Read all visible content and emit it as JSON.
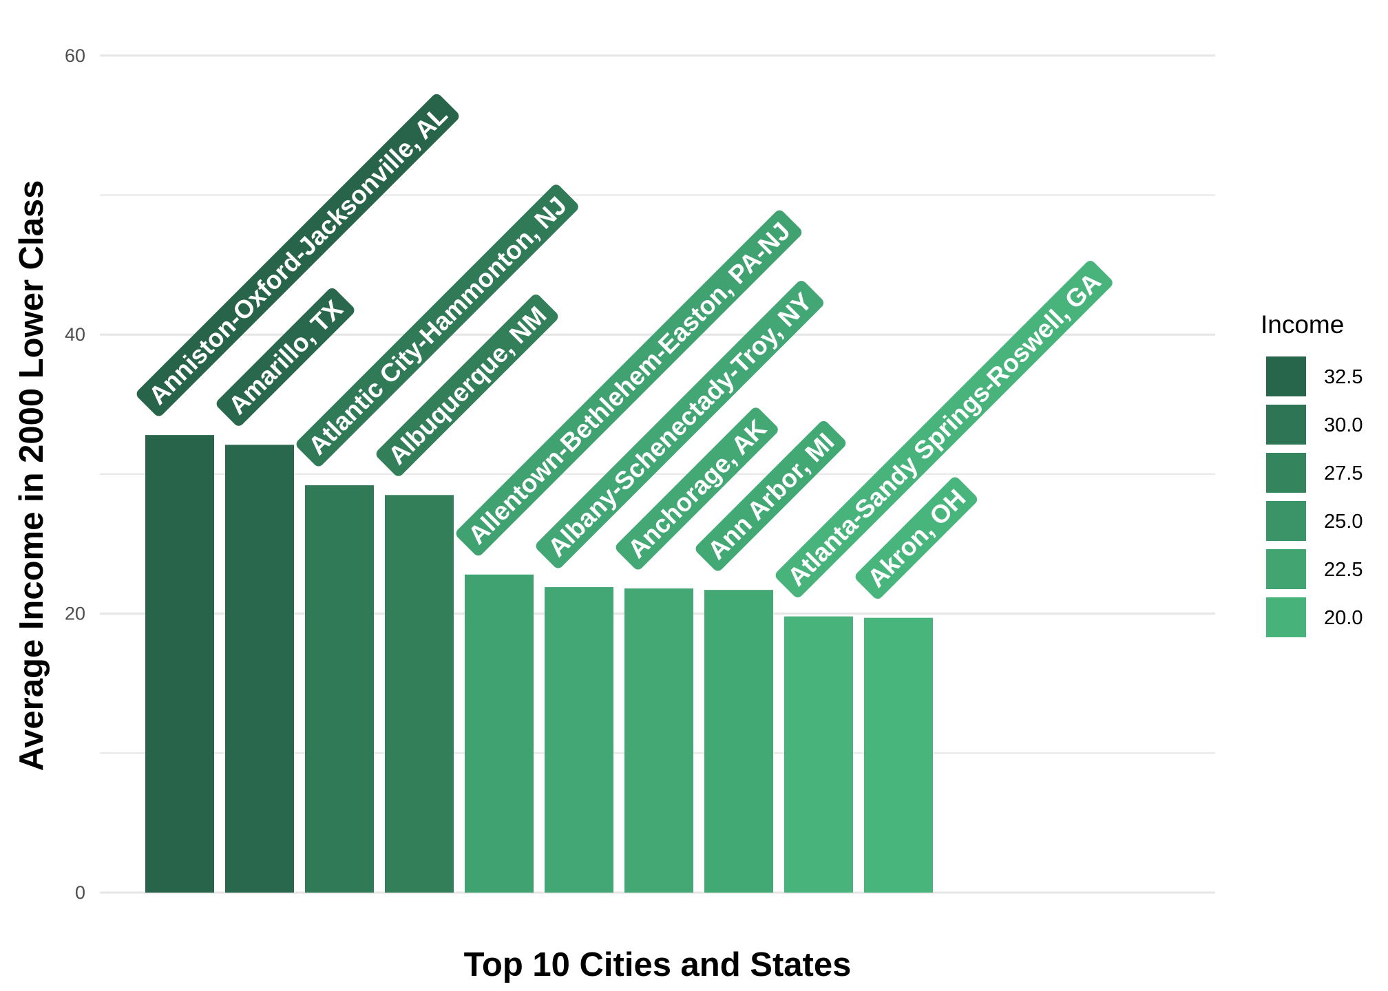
{
  "chart_data": {
    "type": "bar",
    "title": "",
    "xlabel": "Top 10 Cities and States",
    "ylabel": "Average Income in 2000 Lower Class",
    "ylim": [
      0,
      62
    ],
    "yticks": [
      0,
      20,
      40,
      60
    ],
    "grid": true,
    "categories": [
      "Anniston-Oxford-Jacksonville, AL",
      "Amarillo, TX",
      "Atlantic City-Hammonton, NJ",
      "Albuquerque, NM",
      "Allentown-Bethlehem-Easton, PA-NJ",
      "Albany-Schenectady-Troy, NY",
      "Anchorage, AK",
      "Ann Arbor, MI",
      "Atlanta-Sandy Springs-Roswell, GA",
      "Akron, OH"
    ],
    "values": [
      32.8,
      32.1,
      29.2,
      28.5,
      22.8,
      21.9,
      21.8,
      21.7,
      19.8,
      19.7
    ],
    "legend": {
      "title": "Income",
      "placement": "right",
      "entries": [
        "32.5",
        "30.0",
        "27.5",
        "25.0",
        "22.5",
        "20.0"
      ]
    },
    "colors": {
      "high": "#27644a",
      "low": "#48b57c",
      "grid": "#e6e6e6",
      "background": "#ffffff"
    }
  }
}
